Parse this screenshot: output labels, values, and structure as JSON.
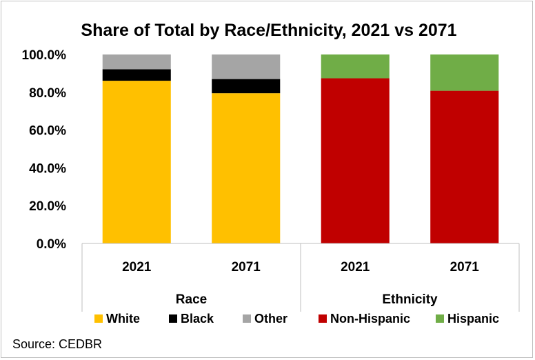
{
  "chart_data": {
    "type": "bar",
    "stacked": true,
    "title": "Share of Total by Race/Ethnicity, 2021 vs 2071",
    "source": "Source: CEDBR",
    "ylim": [
      0,
      100
    ],
    "yticks": [
      "0.0%",
      "20.0%",
      "40.0%",
      "60.0%",
      "80.0%",
      "100.0%"
    ],
    "ytick_values": [
      0,
      20,
      40,
      60,
      80,
      100
    ],
    "grid": false,
    "legend_position": "bottom",
    "groups": [
      {
        "label": "Race",
        "categories": [
          "2021",
          "2071"
        ],
        "series": [
          {
            "name": "White",
            "color": "#FFC000",
            "values": [
              86.1,
              79.5
            ]
          },
          {
            "name": "Black",
            "color": "#000000",
            "values": [
              6.1,
              7.5
            ]
          },
          {
            "name": "Other",
            "color": "#A5A5A5",
            "values": [
              7.8,
              13.0
            ]
          }
        ]
      },
      {
        "label": "Ethnicity",
        "categories": [
          "2021",
          "2071"
        ],
        "series": [
          {
            "name": "Non-Hispanic",
            "color": "#C00000",
            "values": [
              87.4,
              80.8
            ]
          },
          {
            "name": "Hispanic",
            "color": "#70AD47",
            "values": [
              12.6,
              19.2
            ]
          }
        ]
      }
    ],
    "legend": [
      {
        "name": "White",
        "color": "#FFC000"
      },
      {
        "name": "Black",
        "color": "#000000"
      },
      {
        "name": "Other",
        "color": "#A5A5A5"
      },
      {
        "name": "Non-Hispanic",
        "color": "#C00000"
      },
      {
        "name": "Hispanic",
        "color": "#70AD47"
      }
    ]
  }
}
